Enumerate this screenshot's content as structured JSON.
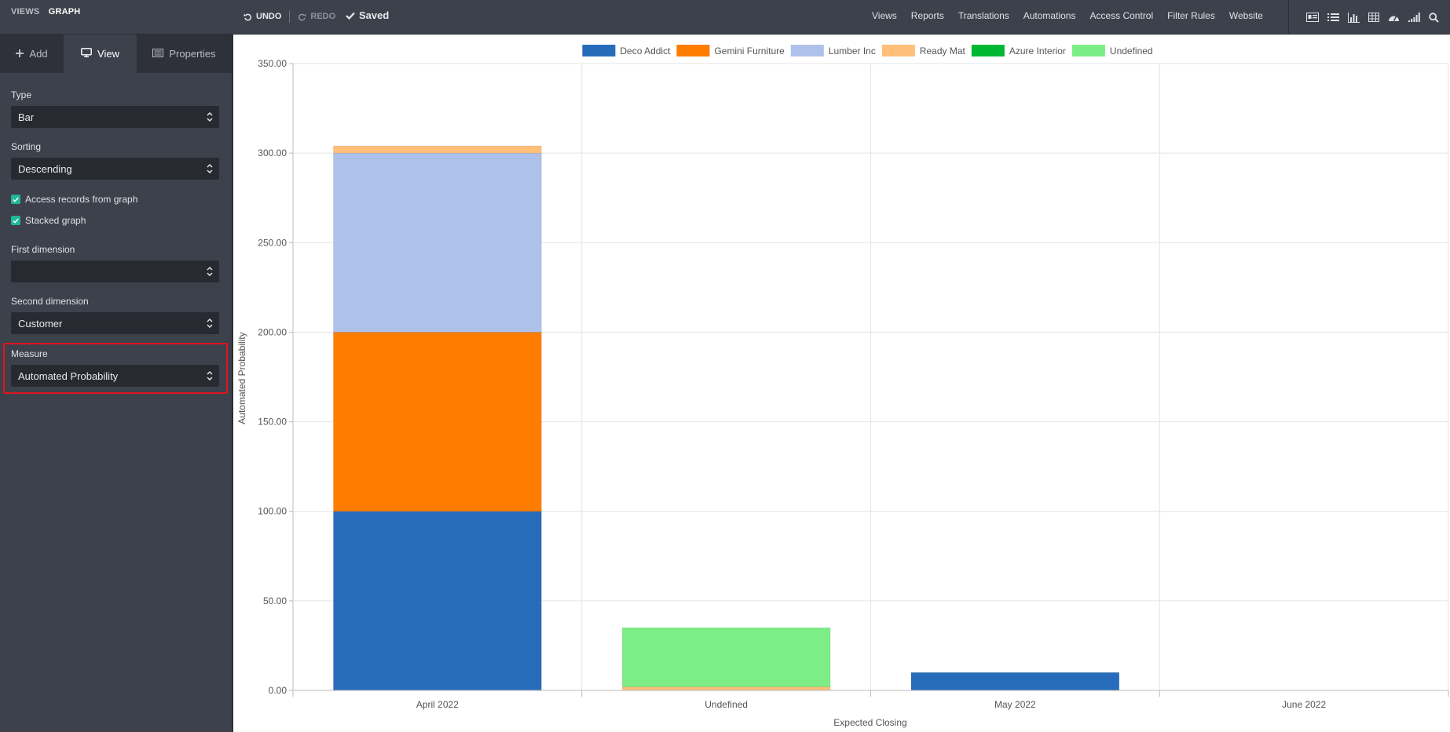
{
  "breadcrumb": {
    "parent": "VIEWS",
    "current": "GRAPH"
  },
  "toolbar": {
    "undo_label": "UNDO",
    "redo_label": "REDO",
    "saved_label": "Saved"
  },
  "top_nav": [
    "Views",
    "Reports",
    "Translations",
    "Automations",
    "Access Control",
    "Filter Rules",
    "Website"
  ],
  "view_icons": [
    "form-view-icon",
    "list-view-icon",
    "graph-view-icon",
    "pivot-view-icon",
    "dashboard-view-icon",
    "cohort-view-icon",
    "search-icon"
  ],
  "sidebar": {
    "tabs": [
      {
        "label": "Add",
        "icon": "plus-icon"
      },
      {
        "label": "View",
        "icon": "monitor-icon"
      },
      {
        "label": "Properties",
        "icon": "properties-icon"
      }
    ],
    "active_tab": "View",
    "type": {
      "label": "Type",
      "value": "Bar"
    },
    "sorting": {
      "label": "Sorting",
      "value": "Descending"
    },
    "access_records": {
      "label": "Access records from graph",
      "checked": true
    },
    "stacked": {
      "label": "Stacked graph",
      "checked": true
    },
    "first_dimension": {
      "label": "First dimension",
      "value": ""
    },
    "second_dimension": {
      "label": "Second dimension",
      "value": "Customer"
    },
    "measure": {
      "label": "Measure",
      "value": "Automated Probability"
    }
  },
  "chart_data": {
    "type": "bar",
    "stacked": true,
    "categories": [
      "April 2022",
      "Undefined",
      "May 2022",
      "June 2022"
    ],
    "series": [
      {
        "name": "Deco Addict",
        "color": "#276cba",
        "values": [
          100,
          0,
          10,
          0
        ]
      },
      {
        "name": "Gemini Furniture",
        "color": "#ff7c00",
        "values": [
          100,
          0,
          0,
          0
        ]
      },
      {
        "name": "Lumber Inc",
        "color": "#aec1ea",
        "values": [
          100,
          0,
          0,
          0
        ]
      },
      {
        "name": "Ready Mat",
        "color": "#ffbf78",
        "values": [
          4,
          2,
          0,
          0
        ]
      },
      {
        "name": "Azure Interior",
        "color": "#00b833",
        "values": [
          0,
          0,
          0,
          0
        ]
      },
      {
        "name": "Undefined",
        "color": "#7ded85",
        "values": [
          0,
          33,
          0,
          0
        ]
      }
    ],
    "xlabel": "Expected Closing",
    "ylabel": "Automated Probability",
    "ylim": [
      0,
      350
    ],
    "yticks": [
      "0.00",
      "50.00",
      "100.00",
      "150.00",
      "200.00",
      "250.00",
      "300.00",
      "350.00"
    ],
    "grid": true,
    "legend": "top-center"
  }
}
